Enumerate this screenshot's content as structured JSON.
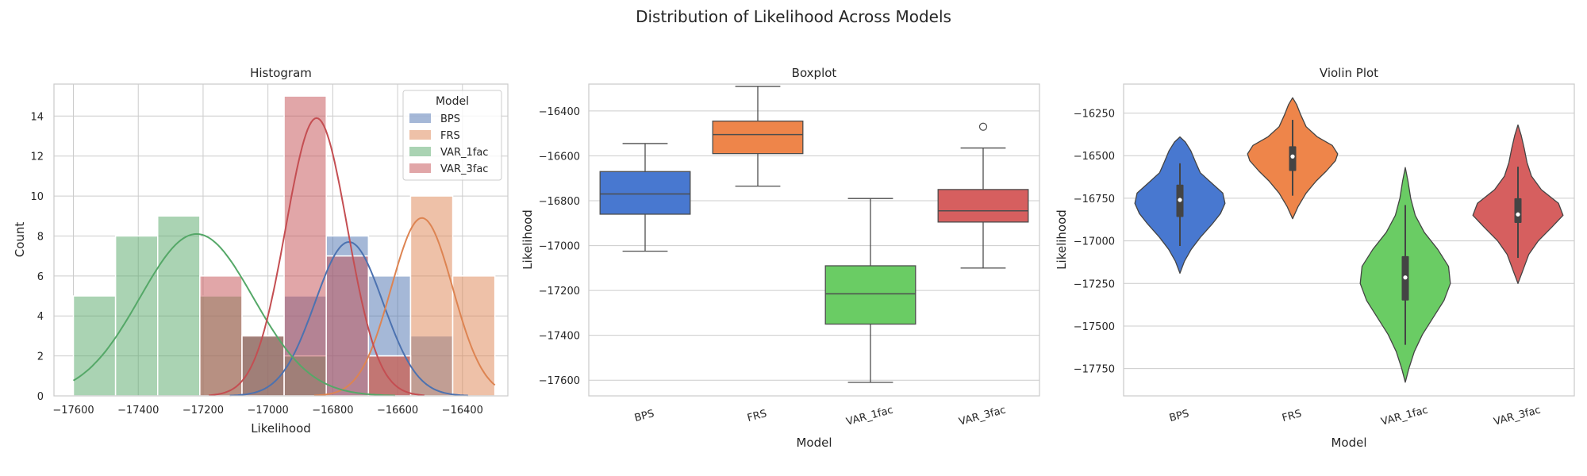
{
  "figure": {
    "title": "Distribution of Likelihood Across Models"
  },
  "palettes": {
    "deep": {
      "BPS": "#4c72b0",
      "FRS": "#dd8452",
      "VAR_1fac": "#55a868",
      "VAR_3fac": "#c44e52"
    },
    "muted": {
      "BPS": "#4878d0",
      "FRS": "#ee854a",
      "VAR_1fac": "#6acc64",
      "VAR_3fac": "#d65f5f"
    }
  },
  "chart_data": [
    {
      "type": "histogram",
      "title": "Histogram",
      "xlabel": "Likelihood",
      "ylabel": "Count",
      "xlim": [
        -17660,
        -16260
      ],
      "ylim": [
        0,
        15.6
      ],
      "xticks": [
        -17600,
        -17400,
        -17200,
        -17000,
        -16800,
        -16600,
        -16400
      ],
      "yticks": [
        0,
        2,
        4,
        6,
        8,
        10,
        12,
        14
      ],
      "grid": true,
      "legend": {
        "title": "Model",
        "placement": "top-right",
        "entries": [
          "BPS",
          "FRS",
          "VAR_1fac",
          "VAR_3fac"
        ]
      },
      "bins": [
        -17600,
        -17470,
        -17340,
        -17210,
        -17080,
        -16950,
        -16820,
        -16690,
        -16560,
        -16430,
        -16300
      ],
      "series": [
        {
          "name": "BPS",
          "counts": [
            0,
            0,
            0,
            0,
            3,
            5,
            8,
            6,
            3,
            0
          ]
        },
        {
          "name": "FRS",
          "counts": [
            0,
            0,
            0,
            0,
            0,
            0,
            0,
            2,
            10,
            6
          ]
        },
        {
          "name": "VAR_1fac",
          "counts": [
            5,
            8,
            9,
            5,
            3,
            2,
            0,
            0,
            0,
            0
          ]
        },
        {
          "name": "VAR_3fac",
          "counts": [
            0,
            0,
            0,
            6,
            3,
            15,
            7,
            2,
            0,
            0
          ]
        }
      ],
      "kde": [
        {
          "name": "BPS",
          "mean": -16750,
          "sd": 105,
          "peak": 7.7
        },
        {
          "name": "FRS",
          "mean": -16525,
          "sd": 95,
          "peak": 8.9
        },
        {
          "name": "VAR_1fac",
          "mean": -17220,
          "sd": 175,
          "peak": 8.1
        },
        {
          "name": "VAR_3fac",
          "mean": -16850,
          "sd": 95,
          "peak": 13.9
        }
      ]
    },
    {
      "type": "box",
      "title": "Boxplot",
      "xlabel": "Model",
      "ylabel": "Likelihood",
      "categories": [
        "BPS",
        "FRS",
        "VAR_1fac",
        "VAR_3fac"
      ],
      "ylim": [
        -17670,
        -16280
      ],
      "yticks": [
        -17600,
        -17400,
        -17200,
        -17000,
        -16800,
        -16600,
        -16400
      ],
      "grid": true,
      "boxes": [
        {
          "name": "BPS",
          "whislo": -17025,
          "q1": -16860,
          "med": -16770,
          "q3": -16670,
          "whishi": -16545,
          "fliers": []
        },
        {
          "name": "FRS",
          "whislo": -16735,
          "q1": -16590,
          "med": -16505,
          "q3": -16445,
          "whishi": -16290,
          "fliers": []
        },
        {
          "name": "VAR_1fac",
          "whislo": -17610,
          "q1": -17350,
          "med": -17215,
          "q3": -17090,
          "whishi": -16790,
          "fliers": []
        },
        {
          "name": "VAR_3fac",
          "whislo": -17100,
          "q1": -16895,
          "med": -16845,
          "q3": -16750,
          "whishi": -16565,
          "fliers": [
            -16470
          ]
        }
      ]
    },
    {
      "type": "violin",
      "title": "Violin Plot",
      "xlabel": "Model",
      "ylabel": "Likelihood",
      "categories": [
        "BPS",
        "FRS",
        "VAR_1fac",
        "VAR_3fac"
      ],
      "ylim": [
        -17910,
        -16080
      ],
      "yticks": [
        -17750,
        -17500,
        -17250,
        -17000,
        -16750,
        -16500,
        -16250
      ],
      "grid": true,
      "violins": [
        {
          "name": "BPS",
          "ymin": -17190,
          "ymax": -16390,
          "median": -16760,
          "q1": -16860,
          "q3": -16670,
          "whislo": -17030,
          "whishi": -16545,
          "profile": [
            [
              -17190,
              0
            ],
            [
              -17120,
              0.1
            ],
            [
              -17050,
              0.25
            ],
            [
              -16980,
              0.45
            ],
            [
              -16900,
              0.72
            ],
            [
              -16840,
              0.9
            ],
            [
              -16780,
              1.0
            ],
            [
              -16720,
              0.95
            ],
            [
              -16660,
              0.7
            ],
            [
              -16600,
              0.45
            ],
            [
              -16540,
              0.35
            ],
            [
              -16470,
              0.24
            ],
            [
              -16420,
              0.12
            ],
            [
              -16390,
              0
            ]
          ]
        },
        {
          "name": "FRS",
          "ymin": -16870,
          "ymax": -16160,
          "median": -16505,
          "q1": -16590,
          "q3": -16445,
          "whislo": -16735,
          "whishi": -16290,
          "profile": [
            [
              -16870,
              0
            ],
            [
              -16800,
              0.12
            ],
            [
              -16720,
              0.3
            ],
            [
              -16650,
              0.52
            ],
            [
              -16590,
              0.75
            ],
            [
              -16530,
              0.95
            ],
            [
              -16490,
              1.0
            ],
            [
              -16440,
              0.88
            ],
            [
              -16390,
              0.55
            ],
            [
              -16330,
              0.3
            ],
            [
              -16260,
              0.18
            ],
            [
              -16200,
              0.09
            ],
            [
              -16160,
              0
            ]
          ]
        },
        {
          "name": "VAR_1fac",
          "ymin": -17830,
          "ymax": -16570,
          "median": -17215,
          "q1": -17350,
          "q3": -17090,
          "whislo": -17610,
          "whishi": -16790,
          "profile": [
            [
              -17830,
              0
            ],
            [
              -17750,
              0.08
            ],
            [
              -17650,
              0.2
            ],
            [
              -17550,
              0.38
            ],
            [
              -17450,
              0.62
            ],
            [
              -17350,
              0.86
            ],
            [
              -17250,
              1.0
            ],
            [
              -17150,
              0.96
            ],
            [
              -17050,
              0.72
            ],
            [
              -16950,
              0.42
            ],
            [
              -16850,
              0.22
            ],
            [
              -16750,
              0.12
            ],
            [
              -16650,
              0.06
            ],
            [
              -16570,
              0
            ]
          ]
        },
        {
          "name": "VAR_3fac",
          "ymin": -17250,
          "ymax": -16320,
          "median": -16845,
          "q1": -16895,
          "q3": -16750,
          "whislo": -17100,
          "whishi": -16565,
          "profile": [
            [
              -17250,
              0
            ],
            [
              -17180,
              0.1
            ],
            [
              -17080,
              0.24
            ],
            [
              -17000,
              0.45
            ],
            [
              -16920,
              0.75
            ],
            [
              -16850,
              1.0
            ],
            [
              -16780,
              0.9
            ],
            [
              -16700,
              0.52
            ],
            [
              -16620,
              0.3
            ],
            [
              -16540,
              0.2
            ],
            [
              -16460,
              0.14
            ],
            [
              -16380,
              0.07
            ],
            [
              -16320,
              0
            ]
          ]
        }
      ]
    }
  ]
}
